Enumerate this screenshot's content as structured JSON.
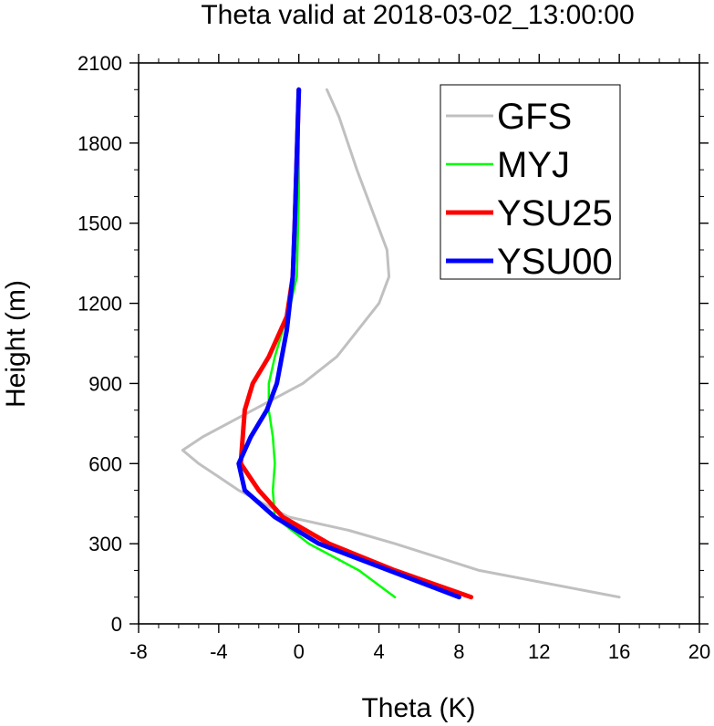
{
  "chart_data": {
    "type": "line",
    "title": "Theta valid at 2018-03-02_13:00:00",
    "xlabel": "Theta (K)",
    "ylabel": "Height (m)",
    "xlim": [
      -8,
      20
    ],
    "ylim": [
      0,
      2100
    ],
    "xticks": [
      -8,
      -4,
      0,
      4,
      8,
      12,
      16,
      20
    ],
    "yticks": [
      0,
      300,
      600,
      900,
      1200,
      1500,
      1800,
      2100
    ],
    "grid": false,
    "legend": "top-right",
    "series": [
      {
        "name": "GFS",
        "color": "#c0c0c0",
        "x": [
          16.0,
          9.0,
          4.8,
          2.5,
          -0.5,
          -3.0,
          -4.0,
          -5.0,
          -5.8,
          -4.8,
          0.2,
          1.9,
          4.0,
          4.5,
          4.4,
          3.9,
          2.9,
          2.0,
          1.4
        ],
        "y": [
          100,
          200,
          300,
          350,
          400,
          500,
          550,
          600,
          650,
          700,
          900,
          1000,
          1200,
          1300,
          1400,
          1500,
          1700,
          1900,
          2000
        ]
      },
      {
        "name": "MYJ",
        "color": "#00ff00",
        "x": [
          4.8,
          3.0,
          0.5,
          -1.2,
          -1.3,
          -1.2,
          -1.3,
          -1.5,
          -1.5,
          -1.2,
          -0.8,
          -0.4,
          -0.1,
          0.0,
          0.0
        ],
        "y": [
          100,
          200,
          300,
          400,
          500,
          600,
          700,
          800,
          900,
          1000,
          1100,
          1200,
          1300,
          1600,
          2000
        ]
      },
      {
        "name": "YSU25",
        "color": "#ff0000",
        "x": [
          8.6,
          4.8,
          1.5,
          -0.8,
          -2.0,
          -2.9,
          -2.8,
          -2.7,
          -2.3,
          -1.5,
          -0.6,
          -0.3,
          -0.2,
          0.0
        ],
        "y": [
          100,
          200,
          300,
          400,
          500,
          600,
          700,
          800,
          900,
          1000,
          1150,
          1300,
          1500,
          2000
        ]
      },
      {
        "name": "YSU00",
        "color": "#0000ff",
        "x": [
          8.0,
          4.5,
          1.0,
          -1.2,
          -2.7,
          -3.0,
          -2.4,
          -1.6,
          -1.1,
          -0.6,
          -0.3,
          -0.2,
          0.0
        ],
        "y": [
          100,
          200,
          300,
          400,
          500,
          600,
          700,
          800,
          900,
          1100,
          1300,
          1500,
          2000
        ]
      }
    ]
  }
}
